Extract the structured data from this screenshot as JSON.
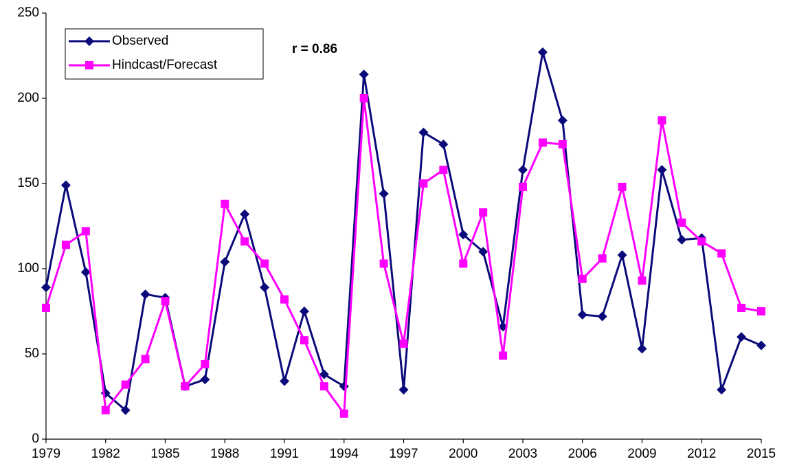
{
  "chart_data": {
    "type": "line",
    "annotation": "r = 0.86",
    "x": [
      1979,
      1980,
      1981,
      1982,
      1983,
      1984,
      1985,
      1986,
      1987,
      1988,
      1989,
      1990,
      1991,
      1992,
      1993,
      1994,
      1995,
      1996,
      1997,
      1998,
      1999,
      2000,
      2001,
      2002,
      2003,
      2004,
      2005,
      2006,
      2007,
      2008,
      2009,
      2010,
      2011,
      2012,
      2013,
      2014,
      2015
    ],
    "series": [
      {
        "name": "Observed",
        "color": "#0a0a7a",
        "marker": "diamond",
        "values": [
          89,
          149,
          98,
          27,
          17,
          85,
          83,
          31,
          35,
          104,
          132,
          89,
          34,
          75,
          38,
          31,
          214,
          144,
          29,
          180,
          173,
          120,
          110,
          66,
          158,
          227,
          187,
          73,
          72,
          108,
          53,
          158,
          117,
          118,
          29,
          60,
          55
        ]
      },
      {
        "name": "Hindcast/Forecast",
        "color": "#ff00ff",
        "marker": "square",
        "values": [
          77,
          114,
          122,
          17,
          32,
          47,
          81,
          31,
          44,
          138,
          116,
          103,
          82,
          58,
          31,
          15,
          200,
          103,
          56,
          150,
          158,
          103,
          133,
          49,
          148,
          174,
          173,
          94,
          106,
          148,
          93,
          187,
          127,
          116,
          109,
          77,
          75
        ]
      }
    ],
    "xlim": [
      1979,
      2015
    ],
    "xticks": [
      1979,
      1982,
      1985,
      1988,
      1991,
      1994,
      1997,
      2000,
      2003,
      2006,
      2009,
      2012,
      2015
    ],
    "ylim": [
      0,
      250
    ],
    "yticks": [
      0,
      50,
      100,
      150,
      200,
      250
    ],
    "grid": false,
    "legend": "upper left"
  }
}
